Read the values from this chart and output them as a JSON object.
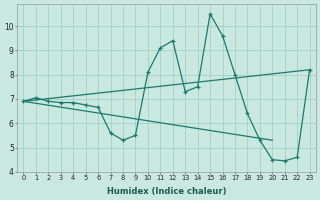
{
  "xlabel": "Humidex (Indice chaleur)",
  "bg_color": "#c8e8e0",
  "grid_color": "#a8cec8",
  "line_color": "#1a7a6e",
  "xlim": [
    -0.5,
    23.5
  ],
  "ylim": [
    4,
    10.9
  ],
  "yticks": [
    4,
    5,
    6,
    7,
    8,
    9,
    10
  ],
  "xticks": [
    0,
    1,
    2,
    3,
    4,
    5,
    6,
    7,
    8,
    9,
    10,
    11,
    12,
    13,
    14,
    15,
    16,
    17,
    18,
    19,
    20,
    21,
    22,
    23
  ],
  "line1_x": [
    0,
    1,
    2,
    3,
    4,
    5,
    6,
    7,
    8,
    9,
    10,
    11,
    12,
    13,
    14,
    15,
    16,
    17,
    18,
    19,
    20,
    21,
    22,
    23
  ],
  "line1_y": [
    6.9,
    7.05,
    6.9,
    6.85,
    6.85,
    6.75,
    6.65,
    5.6,
    5.3,
    5.5,
    8.1,
    9.1,
    9.4,
    7.3,
    7.5,
    10.5,
    9.6,
    8.0,
    6.4,
    5.3,
    4.5,
    4.45,
    4.6,
    8.2
  ],
  "line2_x": [
    0,
    23
  ],
  "line2_y": [
    6.9,
    8.2
  ],
  "line3_x": [
    0,
    20
  ],
  "line3_y": [
    6.9,
    5.3
  ]
}
